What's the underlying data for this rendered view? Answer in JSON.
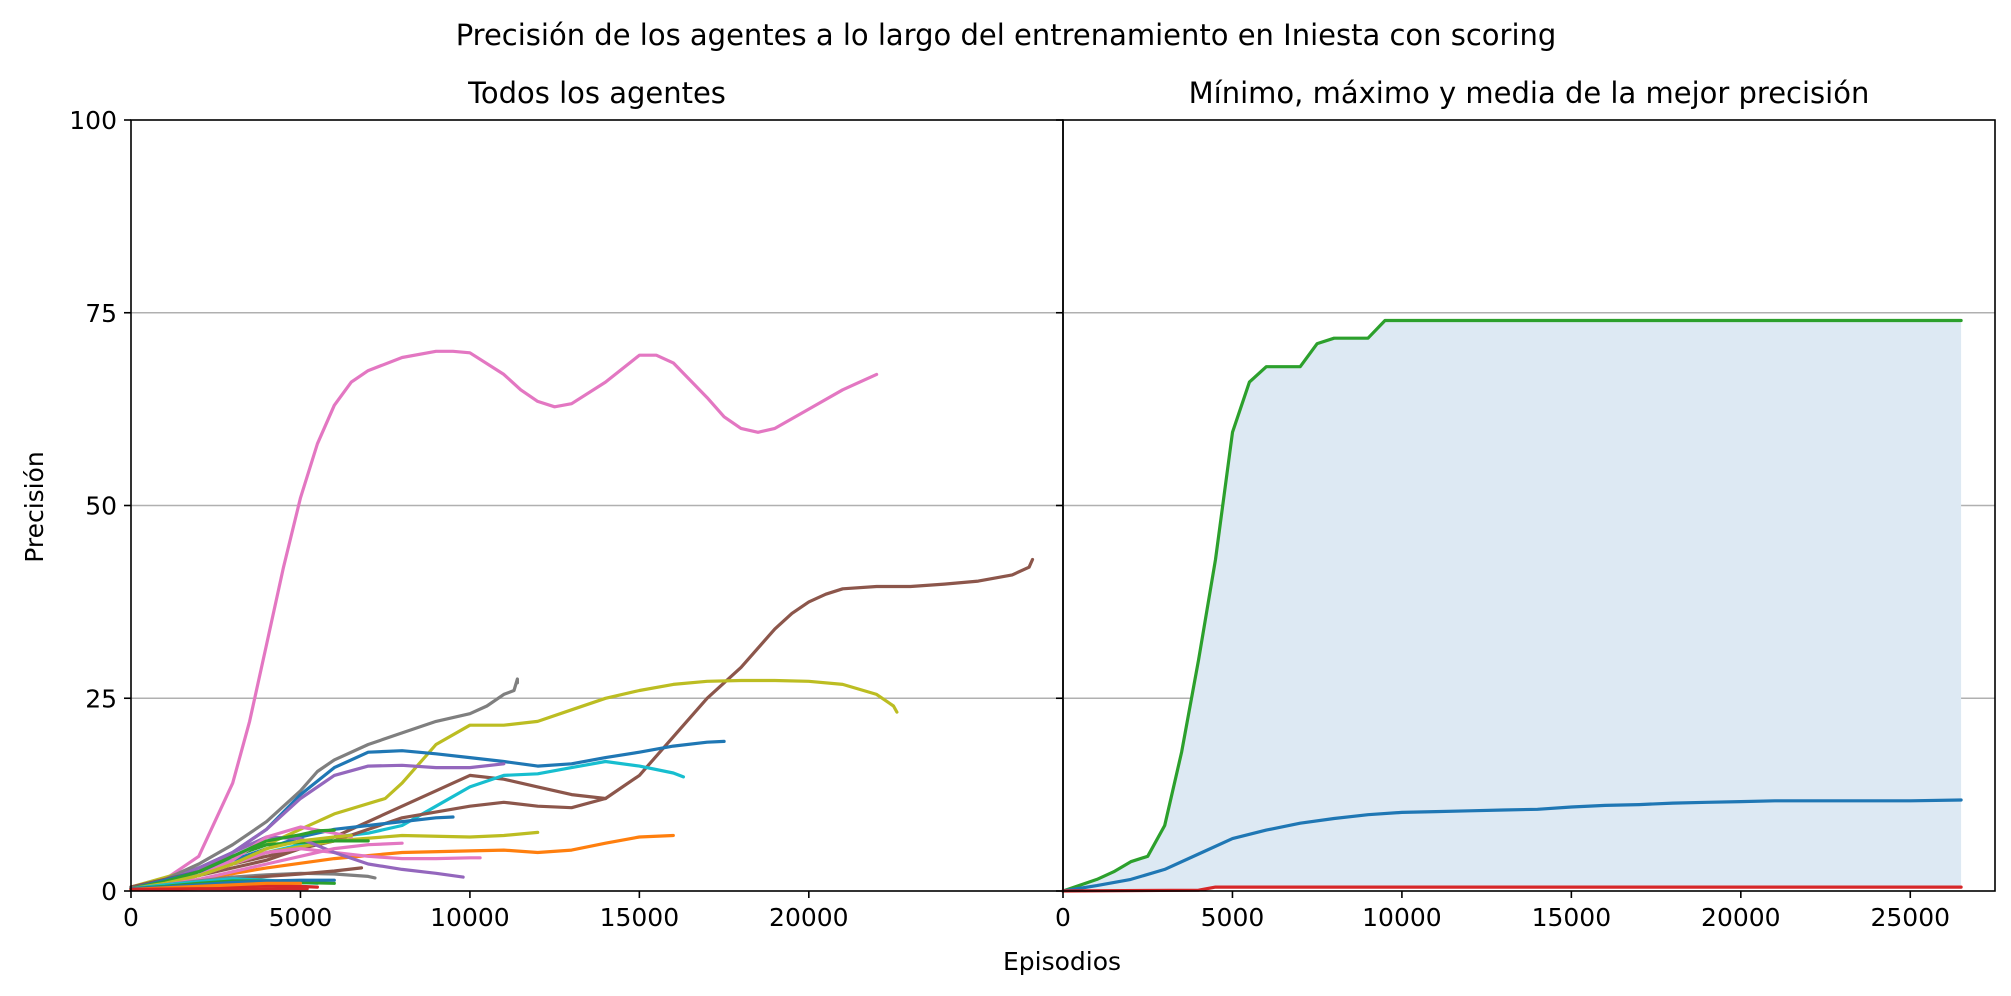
{
  "figure": {
    "suptitle": "Precisión de los agentes a lo largo del entrenamiento en Iniesta con scoring",
    "xlabel": "Episodios",
    "ylabel": "Precisión"
  },
  "chart_data": [
    {
      "type": "line",
      "title": "Todos los agentes",
      "xlim": [
        0,
        27500
      ],
      "ylim": [
        0,
        100
      ],
      "xticks": [
        0,
        5000,
        10000,
        15000,
        20000
      ],
      "yticks": [
        0,
        25,
        50,
        75,
        100
      ],
      "grid": "horizontal",
      "series": [
        {
          "color": "#e377c2",
          "x": [
            0,
            1000,
            2000,
            3000,
            3500,
            4000,
            4500,
            5000,
            5500,
            6000,
            6500,
            7000,
            8000,
            9000,
            9500,
            10000,
            11000,
            11500,
            12000,
            12500,
            13000,
            14000,
            15000,
            15500,
            16000,
            17000,
            17500,
            18000,
            18500,
            19000,
            20000,
            21000,
            22000
          ],
          "y": [
            0.5,
            1.5,
            4.5,
            14,
            22,
            32,
            42,
            51,
            58,
            63,
            66,
            67.5,
            69.2,
            70,
            70,
            69.8,
            67,
            65,
            63.5,
            62.8,
            63.2,
            66,
            69.5,
            69.5,
            68.5,
            64,
            61.5,
            60,
            59.5,
            60,
            62.5,
            65,
            67
          ]
        },
        {
          "color": "#8c564b",
          "x": [
            0,
            2000,
            4000,
            6000,
            8000,
            9000,
            9500,
            10000,
            11000,
            12000,
            13000,
            14000,
            15000,
            16000,
            17000,
            18000,
            19000,
            19500,
            20000,
            20500,
            21000,
            22000,
            23000,
            24000,
            25000,
            26000,
            26500,
            26600
          ],
          "y": [
            0.5,
            2,
            4,
            7,
            11,
            13,
            14,
            15,
            14.5,
            13.5,
            12.5,
            12,
            15,
            20,
            25,
            29,
            34,
            36,
            37.5,
            38.5,
            39.2,
            39.5,
            39.5,
            39.8,
            40.2,
            41,
            42,
            43
          ]
        },
        {
          "color": "#bcbd22",
          "x": [
            0,
            2000,
            4000,
            6000,
            7500,
            8000,
            9000,
            10000,
            11000,
            12000,
            13000,
            14000,
            15000,
            16000,
            17000,
            18000,
            19000,
            20000,
            21000,
            22000,
            22500,
            22600
          ],
          "y": [
            0.5,
            3,
            6,
            10,
            12,
            14,
            19,
            21.5,
            21.5,
            22,
            23.5,
            25,
            26,
            26.8,
            27.2,
            27.3,
            27.3,
            27.2,
            26.8,
            25.5,
            24,
            23.2
          ]
        },
        {
          "color": "#7f7f7f",
          "x": [
            0,
            1000,
            2000,
            3000,
            4000,
            5000,
            5500,
            6000,
            7000,
            8000,
            9000,
            10000,
            10500,
            11000,
            11300,
            11400,
            11400
          ],
          "y": [
            0.5,
            1.5,
            3.5,
            6,
            9,
            13,
            15.5,
            17,
            19,
            20.5,
            22,
            23,
            24,
            25.5,
            26,
            27.5,
            27
          ]
        },
        {
          "color": "#1f77b4",
          "x": [
            0,
            1000,
            2000,
            3000,
            4000,
            5000,
            6000,
            7000,
            8000,
            9000,
            10000,
            11000,
            12000,
            13000,
            14000,
            15000,
            16000,
            17000,
            17500
          ],
          "y": [
            0.5,
            1.2,
            3,
            5,
            8,
            12.5,
            16,
            18,
            18.2,
            17.8,
            17.3,
            16.8,
            16.2,
            16.5,
            17.3,
            18,
            18.8,
            19.3,
            19.4
          ]
        },
        {
          "color": "#17becf",
          "x": [
            0,
            1000,
            2000,
            3000,
            4000,
            5000,
            6000,
            7000,
            8000,
            9000,
            10000,
            11000,
            12000,
            13000,
            14000,
            15000,
            16000,
            16300
          ],
          "y": [
            0.5,
            1,
            2,
            3.5,
            5,
            6,
            7,
            7.5,
            8.5,
            11,
            13.5,
            15,
            15.2,
            16,
            16.8,
            16.2,
            15.3,
            14.8
          ]
        },
        {
          "color": "#9467bd",
          "x": [
            0,
            1000,
            2000,
            3000,
            4000,
            5000,
            6000,
            7000,
            8000,
            9000,
            10000,
            11000
          ],
          "y": [
            0.5,
            1.2,
            3,
            5,
            8,
            12,
            15,
            16.2,
            16.3,
            16,
            16,
            16.5
          ]
        },
        {
          "color": "#8c564b",
          "x": [
            0,
            2000,
            4000,
            6000,
            8000,
            10000,
            11000,
            12000,
            13000,
            14000
          ],
          "y": [
            0.5,
            2.5,
            4.5,
            6.5,
            9.5,
            11,
            11.5,
            11,
            10.8,
            12
          ]
        },
        {
          "color": "#ff7f0e",
          "x": [
            0,
            1000,
            2000,
            4000,
            6000,
            8000,
            10000,
            11000,
            12000,
            13000,
            14000,
            15000,
            16000
          ],
          "y": [
            0.3,
            0.8,
            1.5,
            3,
            4.2,
            5,
            5.2,
            5.3,
            5,
            5.3,
            6.2,
            7,
            7.2
          ]
        },
        {
          "color": "#bcbd22",
          "x": [
            0,
            1000,
            2000,
            3000,
            4000,
            6000,
            8000,
            10000,
            11000,
            12000
          ],
          "y": [
            0.3,
            1,
            2,
            3.5,
            5,
            6.5,
            7.2,
            7,
            7.2,
            7.6
          ]
        },
        {
          "color": "#1f77b4",
          "x": [
            0,
            2000,
            4000,
            5000,
            6000,
            7000,
            8000,
            9000,
            9500
          ],
          "y": [
            0.3,
            2.5,
            5.5,
            7,
            8,
            8.5,
            9,
            9.5,
            9.6
          ]
        },
        {
          "color": "#2ca02c",
          "x": [
            0,
            1000,
            2000,
            3000,
            4000,
            5000,
            6000,
            7000
          ],
          "y": [
            0.3,
            1,
            2.5,
            4.5,
            6,
            6.3,
            6.5,
            6.5
          ]
        },
        {
          "color": "#e377c2",
          "x": [
            0,
            1000,
            2000,
            3000,
            4000,
            5000,
            6000,
            7000,
            8000,
            9000,
            10000,
            10300
          ],
          "y": [
            0.3,
            1,
            2,
            3.5,
            5,
            5.5,
            5,
            4.5,
            4.2,
            4.2,
            4.3,
            4.3
          ]
        },
        {
          "color": "#9467bd",
          "x": [
            0,
            1000,
            2000,
            3000,
            4000,
            5000,
            6000,
            7000,
            8000,
            9000,
            9800
          ],
          "y": [
            0.3,
            1,
            2.5,
            5,
            7,
            6.8,
            5,
            3.5,
            2.8,
            2.3,
            1.8
          ]
        },
        {
          "color": "#e377c2",
          "x": [
            0,
            1000,
            2000,
            3000,
            4000,
            5000,
            6000,
            6500
          ],
          "y": [
            0.3,
            1,
            2,
            4,
            7,
            8.3,
            7.5,
            7
          ]
        },
        {
          "color": "#2ca02c",
          "x": [
            0,
            1000,
            2000,
            3000,
            4000,
            5000,
            5500,
            6000
          ],
          "y": [
            0.3,
            1.2,
            2.5,
            4.5,
            6.5,
            7.3,
            7.8,
            7.9
          ]
        },
        {
          "color": "#bcbd22",
          "x": [
            0,
            1000,
            2000,
            3000,
            4000,
            5000,
            6000,
            6500
          ],
          "y": [
            0.3,
            1,
            2,
            3.5,
            5.5,
            6.5,
            7,
            7.2
          ]
        },
        {
          "color": "#e377c2",
          "x": [
            0,
            1000,
            2000,
            3000,
            4000,
            5000,
            6000,
            7000,
            8000
          ],
          "y": [
            0.3,
            0.8,
            1.5,
            2.5,
            3.5,
            4.5,
            5.5,
            6,
            6.2
          ]
        },
        {
          "color": "#7f7f7f",
          "x": [
            0,
            1000,
            2000,
            3000,
            4000,
            5000,
            6000,
            7000,
            7200
          ],
          "y": [
            0.3,
            0.8,
            1.3,
            1.8,
            2.1,
            2.3,
            2.2,
            1.9,
            1.7
          ]
        },
        {
          "color": "#8c564b",
          "x": [
            0,
            1000,
            2000,
            3000,
            4000,
            5000,
            6000,
            6800
          ],
          "y": [
            0.3,
            0.6,
            1,
            1.5,
            1.9,
            2.2,
            2.6,
            3
          ]
        },
        {
          "color": "#17becf",
          "x": [
            0,
            1000,
            2000,
            3000,
            4000,
            5000,
            5500
          ],
          "y": [
            0.3,
            0.8,
            1.2,
            1.6,
            1.4,
            1.1,
            1
          ]
        },
        {
          "color": "#2ca02c",
          "x": [
            0,
            1000,
            2000,
            3000,
            4000,
            5000,
            6000
          ],
          "y": [
            0.3,
            0.6,
            1,
            1.3,
            1.3,
            1.1,
            1
          ]
        },
        {
          "color": "#1f77b4",
          "x": [
            0,
            1000,
            2000,
            3000,
            4000,
            5000,
            5500,
            6000
          ],
          "y": [
            0.3,
            0.5,
            0.8,
            1.1,
            1.3,
            1.4,
            1.4,
            1.4
          ]
        },
        {
          "color": "#d62728",
          "x": [
            0,
            1000,
            2000,
            3000,
            4000,
            5000,
            5500
          ],
          "y": [
            0.2,
            0.3,
            0.5,
            0.6,
            0.7,
            0.6,
            0.5
          ]
        },
        {
          "color": "#ff7f0e",
          "x": [
            0,
            1000,
            2000,
            3000,
            4000,
            5000
          ],
          "y": [
            0.2,
            0.4,
            0.6,
            0.8,
            1,
            1
          ]
        },
        {
          "color": "#d62728",
          "x": [
            0,
            2000,
            4000,
            5000,
            5200
          ],
          "y": [
            0.2,
            0.3,
            0.3,
            0.3,
            0.3
          ]
        }
      ]
    },
    {
      "type": "line",
      "title": "Mínimo, máximo y media de la mejor precisión",
      "xlim": [
        0,
        27500
      ],
      "ylim": [
        0,
        100
      ],
      "xticks": [
        0,
        5000,
        10000,
        15000,
        20000,
        25000
      ],
      "yticks": [
        0,
        25,
        50,
        75,
        100
      ],
      "grid": "horizontal",
      "fill": {
        "color": "#dde9f3",
        "between": [
          "min",
          "max"
        ]
      },
      "series": [
        {
          "role": "max",
          "color": "#2ca02c",
          "x": [
            0,
            1000,
            1500,
            2000,
            2500,
            3000,
            3500,
            4000,
            4500,
            5000,
            5500,
            6000,
            6500,
            7000,
            7500,
            8000,
            8500,
            9000,
            9500,
            10000,
            26500
          ],
          "y": [
            0,
            1.5,
            2.5,
            3.8,
            4.5,
            8.5,
            18,
            30,
            43,
            59.5,
            66,
            68,
            68,
            68,
            71,
            71.7,
            71.7,
            71.7,
            74,
            74,
            74
          ]
        },
        {
          "role": "mean",
          "color": "#1f77b4",
          "x": [
            0,
            1000,
            2000,
            3000,
            4000,
            5000,
            6000,
            7000,
            8000,
            9000,
            10000,
            11000,
            12000,
            13000,
            14000,
            15000,
            16000,
            17000,
            18000,
            19000,
            20000,
            21000,
            22000,
            23000,
            24000,
            25000,
            26500
          ],
          "y": [
            0,
            0.7,
            1.5,
            2.8,
            4.8,
            6.8,
            7.9,
            8.8,
            9.4,
            9.9,
            10.2,
            10.3,
            10.4,
            10.5,
            10.6,
            10.9,
            11.1,
            11.2,
            11.4,
            11.5,
            11.6,
            11.7,
            11.7,
            11.7,
            11.7,
            11.7,
            11.8
          ]
        },
        {
          "role": "min",
          "color": "#d62728",
          "x": [
            0,
            4000,
            4500,
            26500
          ],
          "y": [
            0,
            0.1,
            0.5,
            0.5
          ]
        }
      ]
    }
  ]
}
